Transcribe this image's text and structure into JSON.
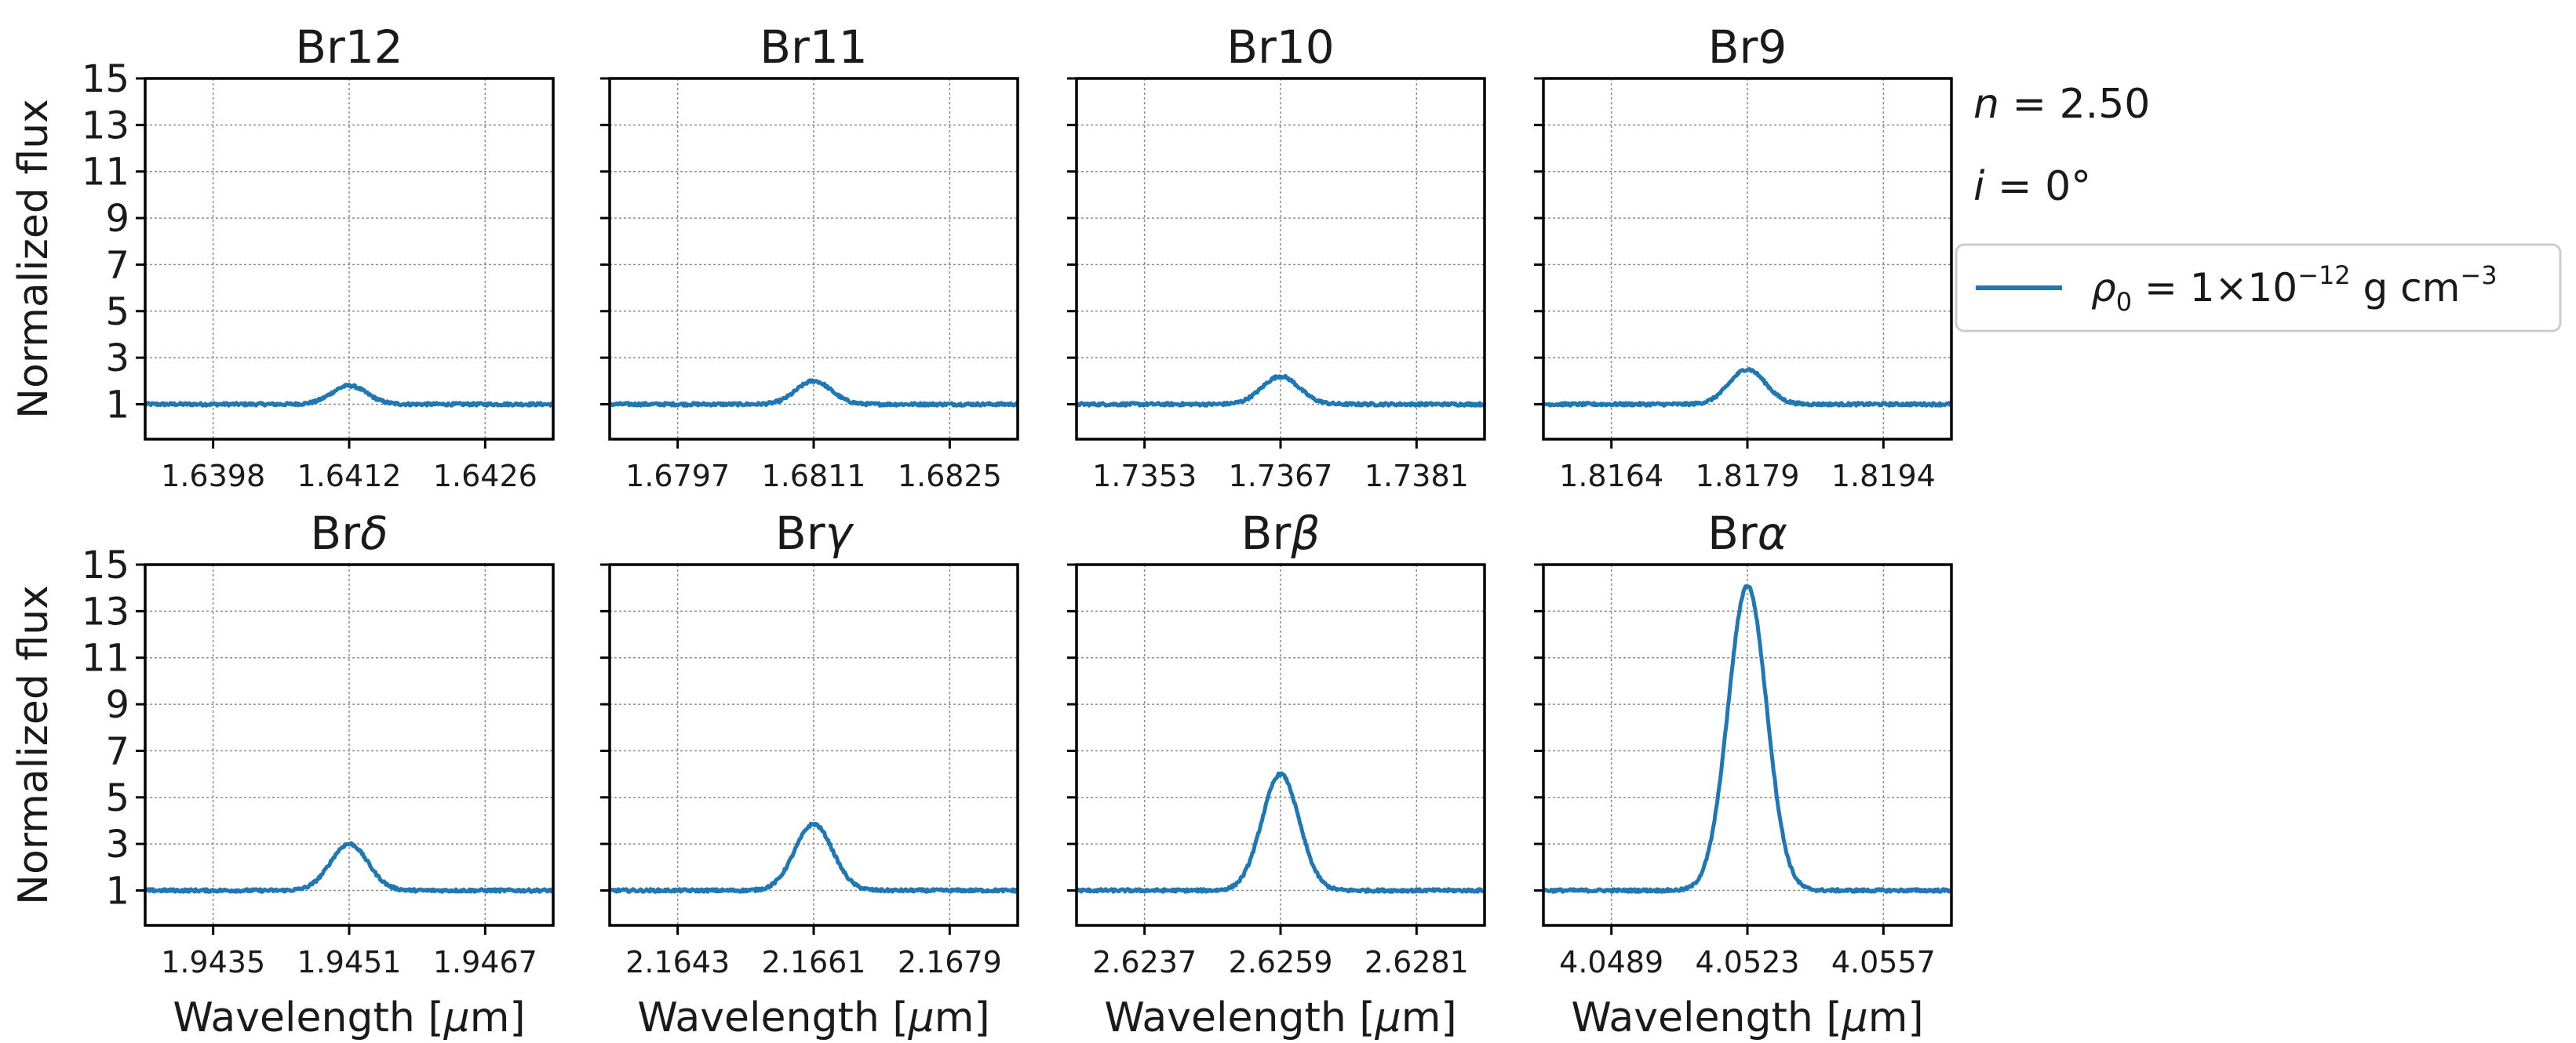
{
  "chart_data": {
    "type": "line",
    "ylabel": "Normalized flux",
    "xlabel": "Wavelength [μm]",
    "ylim": [
      -0.5,
      15
    ],
    "yticks": [
      1,
      3,
      5,
      7,
      9,
      11,
      13,
      15
    ],
    "grid": true,
    "annotations": [
      "n = 2.50",
      "i = 0°"
    ],
    "legend": {
      "position": "right",
      "series_name": "ρ0 = 1×10^-12 g cm^-3",
      "label_parts": {
        "rho": "ρ",
        "sub": "0",
        "mid": " = 1×10",
        "sup": "−12",
        "tail": " g cm",
        "sup2": "−3"
      }
    },
    "color": "#1f77b4",
    "panels": [
      {
        "title": "Br12",
        "title_main": "Br",
        "title_greek": "12",
        "greek_italic": false,
        "xlim": [
          1.6391,
          1.6433
        ],
        "xticks": [
          "1.6398",
          "1.6412",
          "1.6426"
        ],
        "xtick_values": [
          1.6398,
          1.6412,
          1.6426
        ],
        "center": 1.6412,
        "peak": 1.8,
        "sigma": 0.00018,
        "show_xlabel": false,
        "show_ylabel": true
      },
      {
        "title": "Br11",
        "title_main": "Br",
        "title_greek": "11",
        "greek_italic": false,
        "xlim": [
          1.679,
          1.6832
        ],
        "xticks": [
          "1.6797",
          "1.6811",
          "1.6825"
        ],
        "xtick_values": [
          1.6797,
          1.6811,
          1.6825
        ],
        "center": 1.6811,
        "peak": 2.0,
        "sigma": 0.00018,
        "show_xlabel": false,
        "show_ylabel": false
      },
      {
        "title": "Br10",
        "title_main": "Br",
        "title_greek": "10",
        "greek_italic": false,
        "xlim": [
          1.7346,
          1.7388
        ],
        "xticks": [
          "1.7353",
          "1.7367",
          "1.7381"
        ],
        "xtick_values": [
          1.7353,
          1.7367,
          1.7381
        ],
        "center": 1.7367,
        "peak": 2.2,
        "sigma": 0.00019,
        "show_xlabel": false,
        "show_ylabel": false
      },
      {
        "title": "Br9",
        "title_main": "Br",
        "title_greek": "9",
        "greek_italic": false,
        "xlim": [
          1.81565,
          1.82015
        ],
        "xticks": [
          "1.8164",
          "1.8179",
          "1.8194"
        ],
        "xtick_values": [
          1.8164,
          1.8179,
          1.8194
        ],
        "center": 1.8179,
        "peak": 2.5,
        "sigma": 0.0002,
        "show_xlabel": false,
        "show_ylabel": false
      },
      {
        "title": "Brδ",
        "title_main": "Br",
        "title_greek": "δ",
        "greek_italic": true,
        "xlim": [
          1.9427,
          1.9475
        ],
        "xticks": [
          "1.9435",
          "1.9451",
          "1.9467"
        ],
        "xtick_values": [
          1.9435,
          1.9451,
          1.9467
        ],
        "center": 1.9451,
        "peak": 3.0,
        "sigma": 0.00022,
        "show_xlabel": true,
        "show_ylabel": true
      },
      {
        "title": "Brγ",
        "title_main": "Br",
        "title_greek": "γ",
        "greek_italic": true,
        "xlim": [
          2.1634,
          2.1688
        ],
        "xticks": [
          "2.1643",
          "2.1661",
          "2.1679"
        ],
        "xtick_values": [
          2.1643,
          2.1661,
          2.1679
        ],
        "center": 2.1661,
        "peak": 3.85,
        "sigma": 0.00025,
        "show_xlabel": true,
        "show_ylabel": false
      },
      {
        "title": "Brβ",
        "title_main": "Br",
        "title_greek": "β",
        "greek_italic": true,
        "xlim": [
          2.6226,
          2.6292
        ],
        "xticks": [
          "2.6237",
          "2.6259",
          "2.6281"
        ],
        "xtick_values": [
          2.6237,
          2.6259,
          2.6281
        ],
        "center": 2.6259,
        "peak": 6.0,
        "sigma": 0.0003,
        "show_xlabel": true,
        "show_ylabel": false
      },
      {
        "title": "Brα",
        "title_main": "Br",
        "title_greek": "α",
        "greek_italic": true,
        "xlim": [
          4.0472,
          4.0574
        ],
        "xticks": [
          "4.0489",
          "4.0523",
          "4.0557"
        ],
        "xtick_values": [
          4.0489,
          4.0523,
          4.0557
        ],
        "center": 4.0523,
        "peak": 14.1,
        "sigma": 0.00048,
        "show_xlabel": true,
        "show_ylabel": false
      }
    ]
  }
}
